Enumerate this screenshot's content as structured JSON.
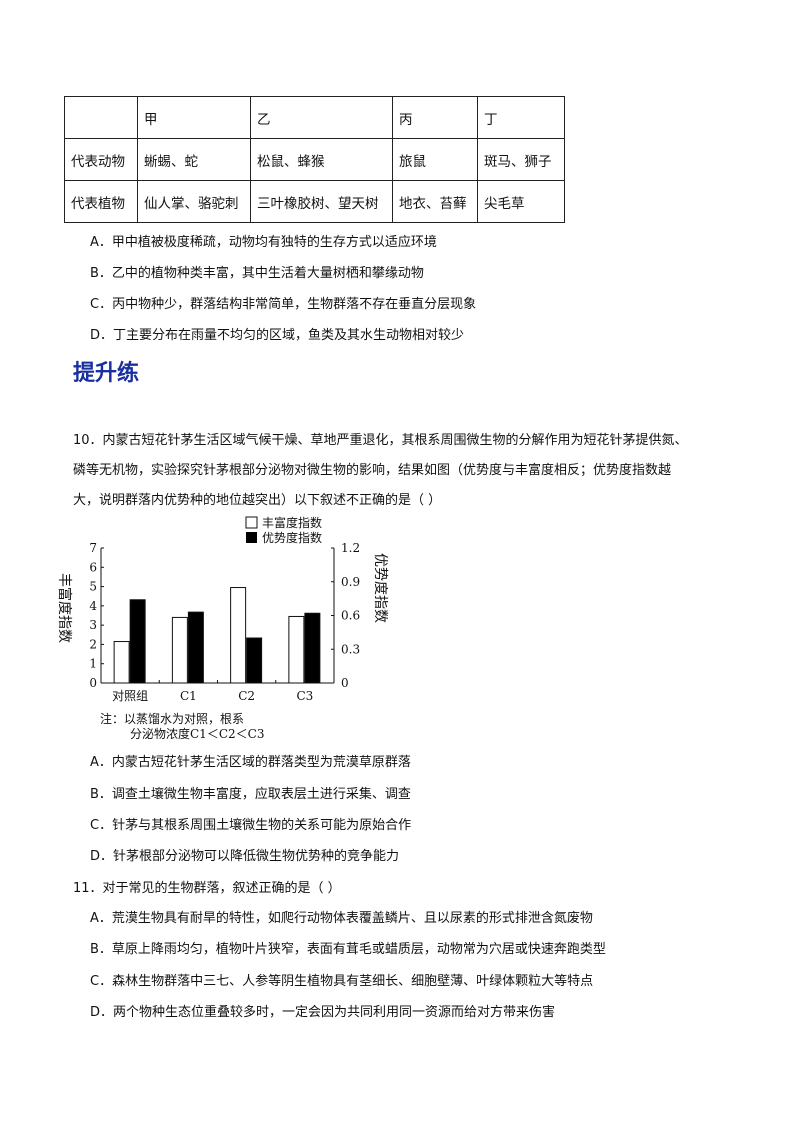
{
  "table": {
    "header": [
      "",
      "甲",
      "乙",
      "丙",
      "丁"
    ],
    "rows": [
      [
        "代表动物",
        "蜥蜴、蛇",
        "松鼠、蜂猴",
        "旅鼠",
        "斑马、狮子"
      ],
      [
        "代表植物",
        "仙人掌、骆驼刺",
        "三叶橡胶树、望天树",
        "地衣、苔藓",
        "尖毛草"
      ]
    ]
  },
  "q9_options": [
    "A．甲中植被极度稀疏，动物均有独特的生存方式以适应环境",
    "B．乙中的植物种类丰富，其中生活着大量树栖和攀缘动物",
    "C．丙中物种少，群落结构非常简单，生物群落不存在垂直分层现象",
    "D．丁主要分布在雨量不均匀的区域，鱼类及其水生动物相对较少"
  ],
  "section_heading": "提升练",
  "q10": {
    "lines": [
      "10．内蒙古短花针茅生活区域气候干燥、草地严重退化，其根系周围微生物的分解作用为短花针茅提供氮、",
      "磷等无机物，实验探究针茅根部分泌物对微生物的影响，结果如图（优势度与丰富度相反；优势度指数越",
      "大，说明群落内优势种的地位越突出）以下叙述不正确的是（    ）"
    ],
    "options": [
      "A．内蒙古短花针茅生活区域的群落类型为荒漠草原群落",
      "B．调查土壤微生物丰富度，应取表层土进行采集、调查",
      "C．针茅与其根系周围土壤微生物的关系可能为原始合作",
      "D．针茅根部分泌物可以降低微生物优势种的竞争能力"
    ]
  },
  "chart_data": {
    "type": "bar",
    "categories": [
      "对照组",
      "C1",
      "C2",
      "C3"
    ],
    "series": [
      {
        "name": "丰富度指数",
        "axis": "left",
        "color": "#ffffff",
        "values": [
          2.15,
          3.4,
          4.95,
          3.45
        ]
      },
      {
        "name": "优势度指数",
        "axis": "right",
        "color": "#000000",
        "values": [
          0.74,
          0.63,
          0.4,
          0.62
        ]
      }
    ],
    "ylabel": "丰富度指数",
    "ylabel_right": "优势度指数",
    "ylim": [
      0,
      7
    ],
    "ylim_right": [
      0,
      1.2
    ],
    "yticks": [
      "0",
      "1",
      "2",
      "3",
      "4",
      "5",
      "6",
      "7"
    ],
    "yticks_right": [
      "0",
      "0.3",
      "0.6",
      "0.9",
      "1.2"
    ],
    "legend_placement": "top-right",
    "grid": false,
    "note_lines": [
      "注：以蒸馏水为对照，根系",
      "分泌物浓度C1＜C2＜C3"
    ]
  },
  "q11": {
    "stem": "11．对于常见的生物群落，叙述正确的是（    ）",
    "options": [
      "A．荒漠生物具有耐旱的特性，如爬行动物体表覆盖鳞片、且以尿素的形式排泄含氮废物",
      "B．草原上降雨均匀，植物叶片狭窄，表面有茸毛或蜡质层，动物常为穴居或快速奔跑类型",
      "C．森林生物群落中三七、人参等阴生植物具有茎细长、细胞壁薄、叶绿体颗粒大等特点",
      "D．两个物种生态位重叠较多时，一定会因为共同利用同一资源而给对方带来伤害"
    ]
  }
}
